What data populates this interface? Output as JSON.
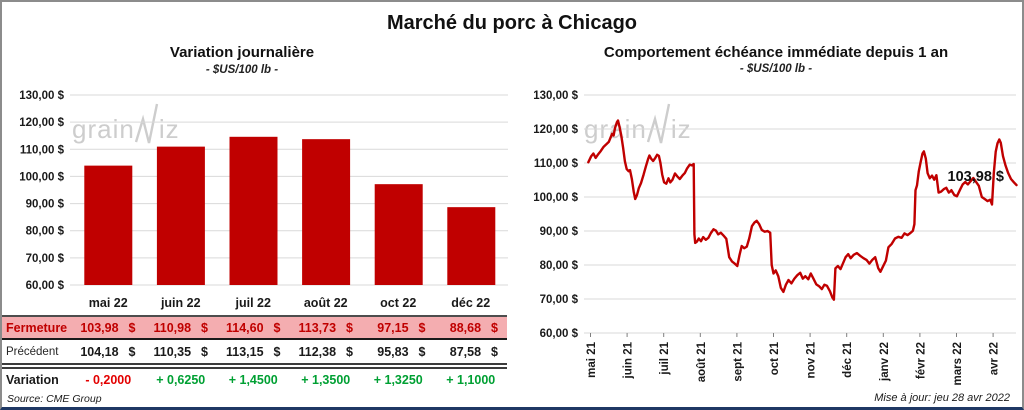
{
  "title": "Marché du porc à Chicago",
  "watermark": {
    "prefix": "grain",
    "suffix": "iz"
  },
  "colors": {
    "series_red": "#C00000",
    "pink_row_bg": "#F4ADB0",
    "negative_red": "#E30000",
    "positive_green": "#00A033",
    "grid": "#D9D9D9",
    "tick": "#7F7F7F",
    "frame_border": "#8C8C8C",
    "bottom_border": "#1F3864",
    "watermark_gray": "#CDCDCD"
  },
  "left_panel": {
    "title": "Variation journalière",
    "subtitle": "- $US/100 lb -",
    "source": "Source: CME Group"
  },
  "right_panel": {
    "title": "Comportement échéance immédiate depuis 1 an",
    "subtitle": "- $US/100 lb -",
    "updated": "Mise à jour: jeu 28 avr 2022"
  },
  "table": {
    "rows": [
      {
        "label": "Fermeture",
        "style": "fermeture",
        "unit": "$",
        "values": [
          "103,98",
          "110,98",
          "114,60",
          "113,73",
          "97,15",
          "88,68"
        ]
      },
      {
        "label": "Précédent",
        "style": "precedent",
        "unit": "$",
        "values": [
          "104,18",
          "110,35",
          "113,15",
          "112,38",
          "95,83",
          "87,58"
        ]
      },
      {
        "label": "Variation",
        "style": "variation",
        "values": [
          "- 0,2000",
          "+ 0,6250",
          "+ 1,4500",
          "+ 1,3500",
          "+ 1,3250",
          "+ 1,1000"
        ]
      }
    ]
  },
  "chart_data": [
    {
      "type": "bar",
      "title": "Variation journalière",
      "subtitle": "- $US/100 lb -",
      "categories": [
        "mai 22",
        "juin 22",
        "juil 22",
        "août 22",
        "oct 22",
        "déc 22"
      ],
      "values": [
        103.98,
        110.98,
        114.6,
        113.73,
        97.15,
        88.68
      ],
      "ylim": [
        60,
        130
      ],
      "yticks": [
        "130,00 $",
        "120,00 $",
        "110,00 $",
        "100,00 $",
        "90,00 $",
        "80,00 $",
        "70,00 $",
        "60,00 $"
      ],
      "bar_color": "#C00000",
      "grid": true,
      "legend": "none"
    },
    {
      "type": "line",
      "title": "Comportement échéance immédiate depuis 1 an",
      "subtitle": "- $US/100 lb -",
      "x_labels": [
        "mai 21",
        "juin 21",
        "juil 21",
        "août 21",
        "sept 21",
        "oct 21",
        "nov 21",
        "déc 21",
        "janv 22",
        "févr 22",
        "mars 22",
        "avr 22"
      ],
      "ylim": [
        60,
        130
      ],
      "yticks": [
        "130,00 $",
        "120,00 $",
        "110,00 $",
        "100,00 $",
        "90,00 $",
        "80,00 $",
        "70,00 $",
        "60,00 $"
      ],
      "line_color": "#C00000",
      "annotation": "103,98 $",
      "last_value": 103.98,
      "grid": true,
      "legend": "none",
      "points": [
        [
          -0.06,
          110.2
        ],
        [
          0.02,
          112.0
        ],
        [
          0.08,
          112.8
        ],
        [
          0.14,
          111.5
        ],
        [
          0.2,
          112.4
        ],
        [
          0.28,
          113.5
        ],
        [
          0.36,
          114.8
        ],
        [
          0.44,
          115.6
        ],
        [
          0.5,
          116.2
        ],
        [
          0.55,
          117.5
        ],
        [
          0.59,
          118.6
        ],
        [
          0.63,
          118.1
        ],
        [
          0.67,
          120.3
        ],
        [
          0.72,
          122.0
        ],
        [
          0.75,
          122.5
        ],
        [
          0.79,
          120.8
        ],
        [
          0.84,
          118.2
        ],
        [
          0.89,
          114.5
        ],
        [
          0.94,
          110.5
        ],
        [
          0.99,
          108.2
        ],
        [
          1.04,
          107.6
        ],
        [
          1.08,
          107.9
        ],
        [
          1.13,
          105.2
        ],
        [
          1.18,
          101.6
        ],
        [
          1.22,
          99.4
        ],
        [
          1.27,
          100.6
        ],
        [
          1.32,
          102.6
        ],
        [
          1.38,
          104.1
        ],
        [
          1.45,
          106.6
        ],
        [
          1.51,
          108.9
        ],
        [
          1.57,
          111.1
        ],
        [
          1.61,
          112.2
        ],
        [
          1.66,
          111.2
        ],
        [
          1.71,
          110.6
        ],
        [
          1.77,
          111.5
        ],
        [
          1.82,
          112.4
        ],
        [
          1.87,
          112.1
        ],
        [
          1.91,
          110.1
        ],
        [
          1.96,
          106.6
        ],
        [
          2.01,
          104.3
        ],
        [
          2.07,
          103.9
        ],
        [
          2.13,
          105.5
        ],
        [
          2.18,
          104.3
        ],
        [
          2.24,
          105.1
        ],
        [
          2.31,
          106.9
        ],
        [
          2.37,
          106.1
        ],
        [
          2.44,
          105.3
        ],
        [
          2.51,
          106.3
        ],
        [
          2.58,
          107.1
        ],
        [
          2.64,
          108.4
        ],
        [
          2.71,
          109.5
        ],
        [
          2.77,
          109.3
        ],
        [
          2.82,
          109.7
        ],
        [
          2.84,
          89.0
        ],
        [
          2.86,
          86.5
        ],
        [
          2.91,
          86.9
        ],
        [
          2.96,
          87.8
        ],
        [
          3.02,
          87.0
        ],
        [
          3.08,
          88.2
        ],
        [
          3.15,
          87.4
        ],
        [
          3.22,
          88.0
        ],
        [
          3.29,
          89.4
        ],
        [
          3.36,
          90.5
        ],
        [
          3.43,
          90.1
        ],
        [
          3.49,
          89.0
        ],
        [
          3.56,
          89.5
        ],
        [
          3.63,
          88.7
        ],
        [
          3.71,
          87.7
        ],
        [
          3.79,
          82.3
        ],
        [
          3.87,
          81.0
        ],
        [
          3.94,
          80.4
        ],
        [
          4.01,
          79.7
        ],
        [
          4.07,
          82.9
        ],
        [
          4.13,
          85.6
        ],
        [
          4.2,
          84.9
        ],
        [
          4.27,
          85.4
        ],
        [
          4.34,
          87.9
        ],
        [
          4.41,
          91.4
        ],
        [
          4.48,
          92.5
        ],
        [
          4.54,
          93.0
        ],
        [
          4.61,
          92.0
        ],
        [
          4.68,
          90.3
        ],
        [
          4.76,
          89.8
        ],
        [
          4.84,
          90.0
        ],
        [
          4.91,
          89.5
        ],
        [
          4.95,
          80.0
        ],
        [
          5.0,
          77.5
        ],
        [
          5.06,
          78.4
        ],
        [
          5.13,
          76.7
        ],
        [
          5.2,
          73.3
        ],
        [
          5.27,
          72.1
        ],
        [
          5.34,
          74.2
        ],
        [
          5.41,
          75.6
        ],
        [
          5.49,
          74.6
        ],
        [
          5.57,
          76.0
        ],
        [
          5.65,
          77.0
        ],
        [
          5.73,
          77.7
        ],
        [
          5.8,
          76.0
        ],
        [
          5.87,
          76.7
        ],
        [
          5.95,
          75.8
        ],
        [
          6.02,
          77.5
        ],
        [
          6.09,
          76.0
        ],
        [
          6.17,
          74.3
        ],
        [
          6.25,
          73.7
        ],
        [
          6.32,
          72.9
        ],
        [
          6.39,
          74.2
        ],
        [
          6.46,
          73.9
        ],
        [
          6.54,
          72.3
        ],
        [
          6.61,
          70.4
        ],
        [
          6.65,
          69.8
        ],
        [
          6.69,
          79.0
        ],
        [
          6.76,
          79.7
        ],
        [
          6.83,
          78.8
        ],
        [
          6.9,
          80.5
        ],
        [
          6.97,
          82.3
        ],
        [
          7.04,
          83.2
        ],
        [
          7.11,
          82.0
        ],
        [
          7.19,
          83.0
        ],
        [
          7.28,
          83.5
        ],
        [
          7.37,
          82.7
        ],
        [
          7.46,
          82.0
        ],
        [
          7.54,
          81.5
        ],
        [
          7.62,
          80.4
        ],
        [
          7.7,
          81.5
        ],
        [
          7.78,
          82.3
        ],
        [
          7.86,
          79.1
        ],
        [
          7.92,
          78.0
        ],
        [
          7.99,
          79.5
        ],
        [
          8.07,
          81.3
        ],
        [
          8.14,
          85.2
        ],
        [
          8.23,
          86.2
        ],
        [
          8.32,
          87.8
        ],
        [
          8.41,
          88.3
        ],
        [
          8.5,
          88.0
        ],
        [
          8.58,
          89.3
        ],
        [
          8.66,
          88.8
        ],
        [
          8.74,
          89.4
        ],
        [
          8.81,
          90.1
        ],
        [
          8.85,
          92.0
        ],
        [
          8.88,
          102.0
        ],
        [
          8.92,
          103.4
        ],
        [
          8.97,
          107.6
        ],
        [
          9.02,
          110.2
        ],
        [
          9.07,
          112.8
        ],
        [
          9.11,
          113.4
        ],
        [
          9.16,
          111.3
        ],
        [
          9.21,
          107.0
        ],
        [
          9.27,
          105.5
        ],
        [
          9.33,
          106.3
        ],
        [
          9.39,
          105.1
        ],
        [
          9.45,
          106.4
        ],
        [
          9.51,
          101.3
        ],
        [
          9.58,
          101.6
        ],
        [
          9.65,
          102.3
        ],
        [
          9.72,
          102.7
        ],
        [
          9.79,
          101.3
        ],
        [
          9.86,
          102.0
        ],
        [
          9.94,
          100.6
        ],
        [
          10.01,
          100.2
        ],
        [
          10.09,
          102.0
        ],
        [
          10.17,
          103.7
        ],
        [
          10.24,
          104.4
        ],
        [
          10.31,
          103.7
        ],
        [
          10.39,
          104.7
        ],
        [
          10.46,
          105.6
        ],
        [
          10.53,
          104.5
        ],
        [
          10.61,
          103.3
        ],
        [
          10.69,
          100.0
        ],
        [
          10.77,
          99.4
        ],
        [
          10.85,
          98.8
        ],
        [
          10.92,
          99.2
        ],
        [
          10.97,
          97.8
        ],
        [
          11.02,
          107.0
        ],
        [
          11.07,
          113.3
        ],
        [
          11.12,
          115.8
        ],
        [
          11.17,
          116.9
        ],
        [
          11.21,
          115.9
        ],
        [
          11.27,
          112.0
        ],
        [
          11.34,
          109.3
        ],
        [
          11.41,
          107.1
        ],
        [
          11.49,
          105.3
        ],
        [
          11.57,
          104.3
        ],
        [
          11.64,
          103.5
        ]
      ]
    }
  ]
}
